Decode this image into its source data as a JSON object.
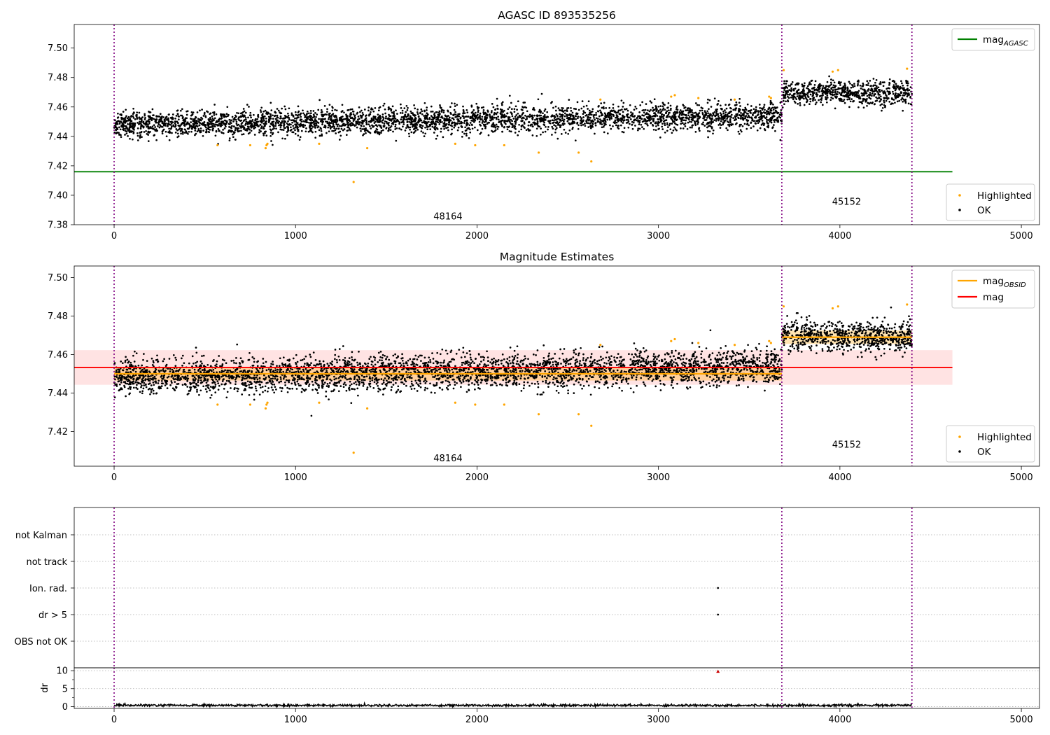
{
  "chart_data": [
    {
      "id": "panel1",
      "type": "scatter",
      "title": "AGASC ID 893535256",
      "xlim": [
        -220,
        5100
      ],
      "ylim": [
        7.38,
        7.516
      ],
      "xticks": [
        0,
        1000,
        2000,
        3000,
        4000,
        5000
      ],
      "yticks": [
        7.38,
        7.4,
        7.42,
        7.44,
        7.46,
        7.48,
        7.5
      ],
      "yticklabels": [
        "7.38",
        "7.40",
        "7.42",
        "7.44",
        "7.46",
        "7.48",
        "7.50"
      ],
      "vlines": [
        0,
        3680,
        4397
      ],
      "obsid_labels": [
        {
          "x": 1840,
          "y": 7.3835,
          "text": "48164"
        },
        {
          "x": 4037,
          "y": 7.3935,
          "text": "45152"
        }
      ],
      "hlines": [
        {
          "name": "mag_AGASC",
          "y": 7.416,
          "x": [
            -220,
            4620
          ],
          "color": "#008000"
        }
      ],
      "bands": [],
      "obsid_segments": [],
      "segments": [
        {
          "x0": 0,
          "x1": 3680,
          "mean_start": 7.448,
          "mean_end": 7.454,
          "spread": 0.0045
        },
        {
          "x0": 3680,
          "x1": 4397,
          "mean_start": 7.47,
          "mean_end": 7.469,
          "spread": 0.004
        }
      ],
      "highlighted": [
        [
          570,
          7.434
        ],
        [
          750,
          7.434
        ],
        [
          835,
          7.432
        ],
        [
          840,
          7.434
        ],
        [
          845,
          7.435
        ],
        [
          1130,
          7.435
        ],
        [
          1320,
          7.409
        ],
        [
          1395,
          7.432
        ],
        [
          1880,
          7.435
        ],
        [
          1990,
          7.434
        ],
        [
          2150,
          7.434
        ],
        [
          2340,
          7.429
        ],
        [
          2560,
          7.429
        ],
        [
          2630,
          7.423
        ],
        [
          2680,
          7.465
        ],
        [
          3070,
          7.467
        ],
        [
          3090,
          7.468
        ],
        [
          3220,
          7.466
        ],
        [
          3420,
          7.465
        ],
        [
          3610,
          7.467
        ],
        [
          3620,
          7.466
        ],
        [
          3690,
          7.485
        ],
        [
          3960,
          7.484
        ],
        [
          3990,
          7.485
        ],
        [
          4370,
          7.486
        ]
      ],
      "legend": {
        "position": "top-right",
        "entries": [
          {
            "label_main": "mag",
            "label_sub": "AGASC",
            "color": "#008000",
            "kind": "line"
          }
        ]
      },
      "legend2": {
        "position": "bottom-right",
        "entries": [
          {
            "label": "Highlighted",
            "color": "#ffa500",
            "kind": "dot"
          },
          {
            "label": "OK",
            "color": "#000000",
            "kind": "dot"
          }
        ]
      }
    },
    {
      "id": "panel2",
      "type": "scatter",
      "title": "Magnitude Estimates",
      "xlim": [
        -220,
        5100
      ],
      "ylim": [
        7.402,
        7.506
      ],
      "xticks": [
        0,
        1000,
        2000,
        3000,
        4000,
        5000
      ],
      "yticks": [
        7.42,
        7.44,
        7.46,
        7.48,
        7.5
      ],
      "yticklabels": [
        "7.42",
        "7.44",
        "7.46",
        "7.48",
        "7.50"
      ],
      "vlines": [
        0,
        3680,
        4397
      ],
      "obsid_labels": [
        {
          "x": 1840,
          "y": 7.4045,
          "text": "48164"
        },
        {
          "x": 4037,
          "y": 7.4116,
          "text": "45152"
        }
      ],
      "hlines": [
        {
          "name": "mag",
          "y": 7.4533,
          "x": [
            -220,
            4620
          ],
          "color": "#ff0000"
        }
      ],
      "bands": [
        {
          "y0": 7.4443,
          "y1": 7.4623,
          "x": [
            -220,
            4620
          ],
          "color": "#ffcccc"
        }
      ],
      "obsid_segments": [
        {
          "x0": 0,
          "x1": 3680,
          "y": 7.45,
          "band": [
            7.4465,
            7.4535
          ],
          "color": "#ffa500"
        },
        {
          "x0": 3680,
          "x1": 4397,
          "y": 7.469,
          "band": [
            7.4655,
            7.4725
          ],
          "color": "#ffa500"
        }
      ],
      "segments": [
        {
          "x0": 0,
          "x1": 3680,
          "mean_start": 7.448,
          "mean_end": 7.454,
          "spread": 0.0045
        },
        {
          "x0": 3680,
          "x1": 4397,
          "mean_start": 7.47,
          "mean_end": 7.469,
          "spread": 0.004
        }
      ],
      "highlighted": [
        [
          570,
          7.434
        ],
        [
          750,
          7.434
        ],
        [
          835,
          7.432
        ],
        [
          840,
          7.434
        ],
        [
          845,
          7.435
        ],
        [
          1130,
          7.435
        ],
        [
          1320,
          7.409
        ],
        [
          1395,
          7.432
        ],
        [
          1880,
          7.435
        ],
        [
          1990,
          7.434
        ],
        [
          2150,
          7.434
        ],
        [
          2340,
          7.429
        ],
        [
          2560,
          7.429
        ],
        [
          2630,
          7.423
        ],
        [
          2680,
          7.465
        ],
        [
          3070,
          7.467
        ],
        [
          3090,
          7.468
        ],
        [
          3220,
          7.466
        ],
        [
          3420,
          7.465
        ],
        [
          3610,
          7.467
        ],
        [
          3620,
          7.466
        ],
        [
          3690,
          7.485
        ],
        [
          3960,
          7.484
        ],
        [
          3990,
          7.485
        ],
        [
          4370,
          7.486
        ]
      ],
      "legend": {
        "position": "top-right",
        "entries": [
          {
            "label_main": "mag",
            "label_sub": "OBSID",
            "color": "#ffa500",
            "kind": "line"
          },
          {
            "label_main": "mag",
            "label_sub": "",
            "color": "#ff0000",
            "kind": "line"
          }
        ]
      },
      "legend2": {
        "position": "bottom-right",
        "entries": [
          {
            "label": "Highlighted",
            "color": "#ffa500",
            "kind": "dot"
          },
          {
            "label": "OK",
            "color": "#000000",
            "kind": "dot"
          }
        ]
      }
    },
    {
      "id": "panel3",
      "type": "scatter",
      "title": "",
      "xlim": [
        -220,
        5100
      ],
      "categories": [
        "not Kalman",
        "not track",
        "Ion. rad.",
        "dr > 5",
        "OBS not OK"
      ],
      "flag_points": [
        {
          "category": "Ion. rad.",
          "x": 3328
        },
        {
          "category": "dr > 5",
          "x": 3328
        }
      ],
      "vlines": [
        0,
        3680,
        4397
      ]
    },
    {
      "id": "panel4",
      "type": "line",
      "title": "",
      "xlim": [
        -220,
        5100
      ],
      "ylim": [
        -0.5,
        10.8
      ],
      "xticks": [
        0,
        1000,
        2000,
        3000,
        4000,
        5000
      ],
      "yticks": [
        0,
        5,
        10
      ],
      "yticklabels": [
        "0",
        "5",
        "10"
      ],
      "ylabel": "dr",
      "vlines": [
        0,
        3680,
        4397
      ],
      "dr_range": [
        0,
        4397
      ],
      "dr_level": 0.35,
      "dr_noise": 0.25,
      "dr_outliers": [
        {
          "x": 3328,
          "y": 9.8,
          "color": "#cc0000"
        }
      ]
    }
  ]
}
